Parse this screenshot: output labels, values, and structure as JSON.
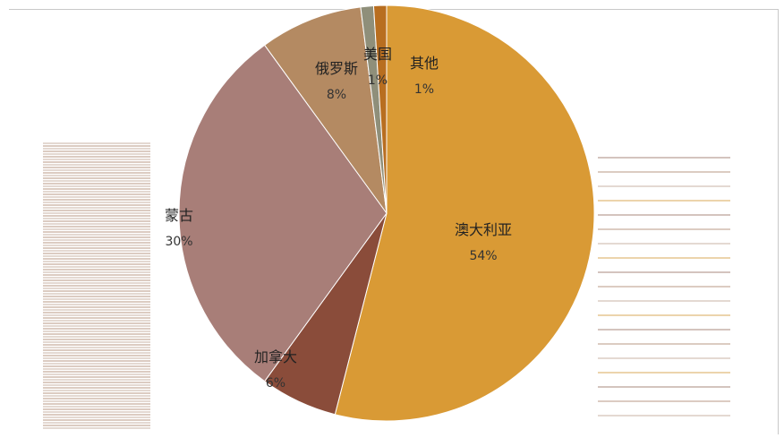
{
  "chart_data": {
    "type": "pie",
    "title": "",
    "slices": [
      {
        "name": "澳大利亚",
        "value": 54,
        "label": "54%",
        "color": "#d99a35"
      },
      {
        "name": "加拿大",
        "value": 6,
        "label": "6%",
        "color": "#8a4c3a"
      },
      {
        "name": "蒙古",
        "value": 30,
        "label": "30%",
        "color": "#a87e78"
      },
      {
        "name": "俄罗斯",
        "value": 8,
        "label": "8%",
        "color": "#b48a62"
      },
      {
        "name": "美国",
        "value": 1,
        "label": "1%",
        "color": "#8f8f7a"
      },
      {
        "name": "其他",
        "value": 1,
        "label": "1%",
        "color": "#b86e20"
      }
    ],
    "legend": "none"
  }
}
